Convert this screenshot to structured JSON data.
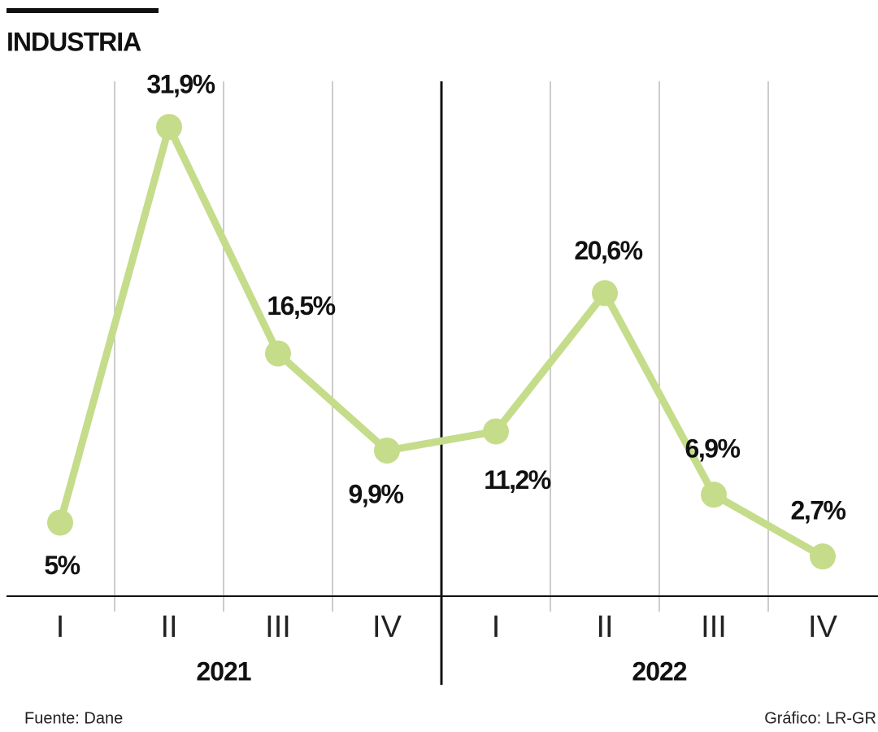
{
  "chart_data": {
    "type": "line",
    "title": "INDUSTRIA",
    "categories": [
      "I",
      "II",
      "III",
      "IV",
      "I",
      "II",
      "III",
      "IV"
    ],
    "groups": [
      "2021",
      "2022"
    ],
    "values": [
      5,
      31.9,
      16.5,
      9.9,
      11.2,
      20.6,
      6.9,
      2.7
    ],
    "value_labels": [
      "5%",
      "31,9%",
      "16,5%",
      "9,9%",
      "11,2%",
      "20,6%",
      "6,9%",
      "2,7%"
    ],
    "color": "#c5dc8a",
    "ylim": [
      0,
      35
    ],
    "grid": true,
    "source": "Fuente: Dane",
    "credit": "Gráfico: LR-GR"
  }
}
